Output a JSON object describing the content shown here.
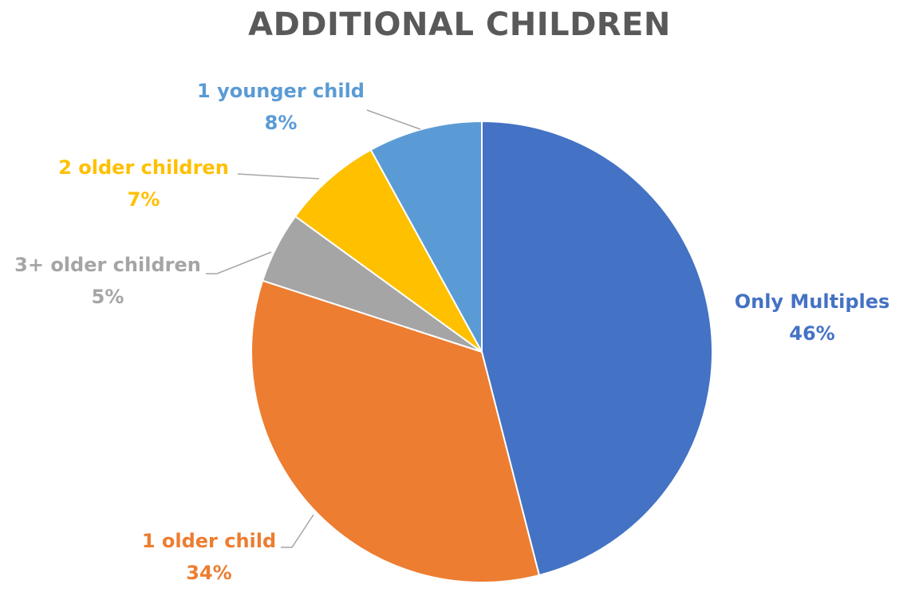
{
  "chart_data": {
    "type": "pie",
    "title": "ADDITIONAL CHILDREN",
    "slices": [
      {
        "label": "Only Multiples",
        "value": 46,
        "pct_label": "46%",
        "color": "#4472C4"
      },
      {
        "label": "1 older child",
        "value": 34,
        "pct_label": "34%",
        "color": "#ED7D31"
      },
      {
        "label": "3+ older children",
        "value": 5,
        "pct_label": "5%",
        "color": "#A5A5A5"
      },
      {
        "label": "2 older children",
        "value": 7,
        "pct_label": "7%",
        "color": "#FFC000"
      },
      {
        "label": "1 younger child",
        "value": 8,
        "pct_label": "8%",
        "color": "#5B9BD5"
      }
    ],
    "legend": "none",
    "data_labels": "outside with leader lines"
  }
}
